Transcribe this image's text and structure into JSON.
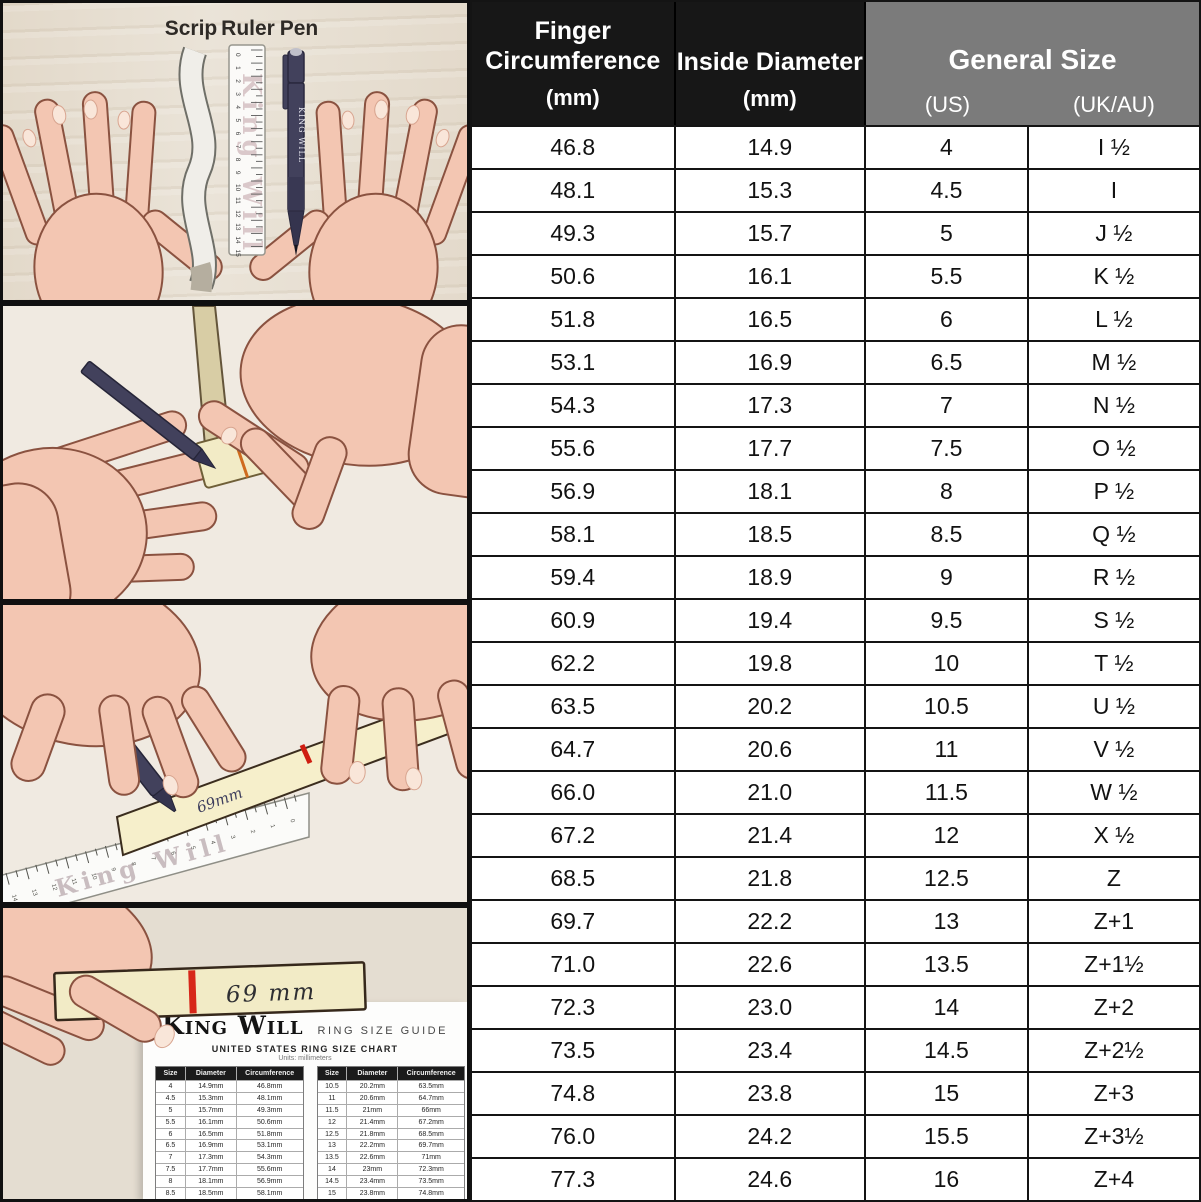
{
  "colors": {
    "header_black": "#171717",
    "header_gray": "#7b7b7b",
    "table_border": "#141414",
    "pen_navy": "#42415c",
    "strip_cream": "#f2ebc6",
    "accent_red": "#d7271a",
    "skin": "#f3c6b2",
    "wood": "#e9e2d6"
  },
  "table_header": {
    "col1": {
      "line1": "Finger",
      "line2": "Circumference",
      "unit": "(mm)"
    },
    "col2": {
      "line1": "Inside Diameter",
      "unit": "(mm)"
    },
    "general": {
      "title": "General Size",
      "us": "(US)",
      "ukau": "(UK/AU)"
    }
  },
  "chart_data": {
    "type": "table",
    "title": "Ring size conversion chart",
    "columns": [
      "Finger Circumference (mm)",
      "Inside Diameter (mm)",
      "General Size (US)",
      "General Size (UK/AU)"
    ],
    "rows": [
      [
        "46.8",
        "14.9",
        "4",
        "I ½"
      ],
      [
        "48.1",
        "15.3",
        "4.5",
        "I"
      ],
      [
        "49.3",
        "15.7",
        "5",
        "J ½"
      ],
      [
        "50.6",
        "16.1",
        "5.5",
        "K ½"
      ],
      [
        "51.8",
        "16.5",
        "6",
        "L ½"
      ],
      [
        "53.1",
        "16.9",
        "6.5",
        "M ½"
      ],
      [
        "54.3",
        "17.3",
        "7",
        "N ½"
      ],
      [
        "55.6",
        "17.7",
        "7.5",
        "O ½"
      ],
      [
        "56.9",
        "18.1",
        "8",
        "P ½"
      ],
      [
        "58.1",
        "18.5",
        "8.5",
        "Q ½"
      ],
      [
        "59.4",
        "18.9",
        "9",
        "R ½"
      ],
      [
        "60.9",
        "19.4",
        "9.5",
        "S ½"
      ],
      [
        "62.2",
        "19.8",
        "10",
        "T ½"
      ],
      [
        "63.5",
        "20.2",
        "10.5",
        "U ½"
      ],
      [
        "64.7",
        "20.6",
        "11",
        "V ½"
      ],
      [
        "66.0",
        "21.0",
        "11.5",
        "W ½"
      ],
      [
        "67.2",
        "21.4",
        "12",
        "X ½"
      ],
      [
        "68.5",
        "21.8",
        "12.5",
        "Z"
      ],
      [
        "69.7",
        "22.2",
        "13",
        "Z+1"
      ],
      [
        "71.0",
        "22.6",
        "13.5",
        "Z+1½"
      ],
      [
        "72.3",
        "23.0",
        "14",
        "Z+2"
      ],
      [
        "73.5",
        "23.4",
        "14.5",
        "Z+2½"
      ],
      [
        "74.8",
        "23.8",
        "15",
        "Z+3"
      ],
      [
        "76.0",
        "24.2",
        "15.5",
        "Z+3½"
      ],
      [
        "77.3",
        "24.6",
        "16",
        "Z+4"
      ]
    ]
  },
  "panels": {
    "tools": {
      "label_scrip": "Scrip",
      "label_ruler": "Ruler",
      "label_pen": "Pen",
      "ruler_brand": "King Will",
      "pen_brand": "KING WILL",
      "ruler_numbers": [
        "0",
        "1",
        "2",
        "3",
        "4",
        "5",
        "6",
        "7",
        "8",
        "9",
        "10",
        "11",
        "12",
        "13",
        "14",
        "15"
      ]
    },
    "mark": {
      "pen_brand": "King Will",
      "ruler_brand": "King Will",
      "strip_text": "69mm"
    },
    "result": {
      "strip_text": "69 mm",
      "paper": {
        "brand": "King Will",
        "guide_title": "RING SIZE GUIDE",
        "chart_title": "UNITED STATES RING SIZE CHART",
        "units_note": "Units: millimeters",
        "col_headers": [
          "Size",
          "Diameter",
          "Circumference"
        ],
        "tables": [
          {
            "rows": [
              [
                "4",
                "14.9mm",
                "46.8mm"
              ],
              [
                "4.5",
                "15.3mm",
                "48.1mm"
              ],
              [
                "5",
                "15.7mm",
                "49.3mm"
              ],
              [
                "5.5",
                "16.1mm",
                "50.6mm"
              ],
              [
                "6",
                "16.5mm",
                "51.8mm"
              ],
              [
                "6.5",
                "16.9mm",
                "53.1mm"
              ],
              [
                "7",
                "17.3mm",
                "54.3mm"
              ],
              [
                "7.5",
                "17.7mm",
                "55.6mm"
              ],
              [
                "8",
                "18.1mm",
                "56.9mm"
              ],
              [
                "8.5",
                "18.5mm",
                "58.1mm"
              ]
            ]
          },
          {
            "rows": [
              [
                "10.5",
                "20.2mm",
                "63.5mm"
              ],
              [
                "11",
                "20.6mm",
                "64.7mm"
              ],
              [
                "11.5",
                "21mm",
                "66mm"
              ],
              [
                "12",
                "21.4mm",
                "67.2mm"
              ],
              [
                "12.5",
                "21.8mm",
                "68.5mm"
              ],
              [
                "13",
                "22.2mm",
                "69.7mm"
              ],
              [
                "13.5",
                "22.6mm",
                "71mm"
              ],
              [
                "14",
                "23mm",
                "72.3mm"
              ],
              [
                "14.5",
                "23.4mm",
                "73.5mm"
              ],
              [
                "15",
                "23.8mm",
                "74.8mm"
              ]
            ]
          }
        ]
      }
    }
  }
}
